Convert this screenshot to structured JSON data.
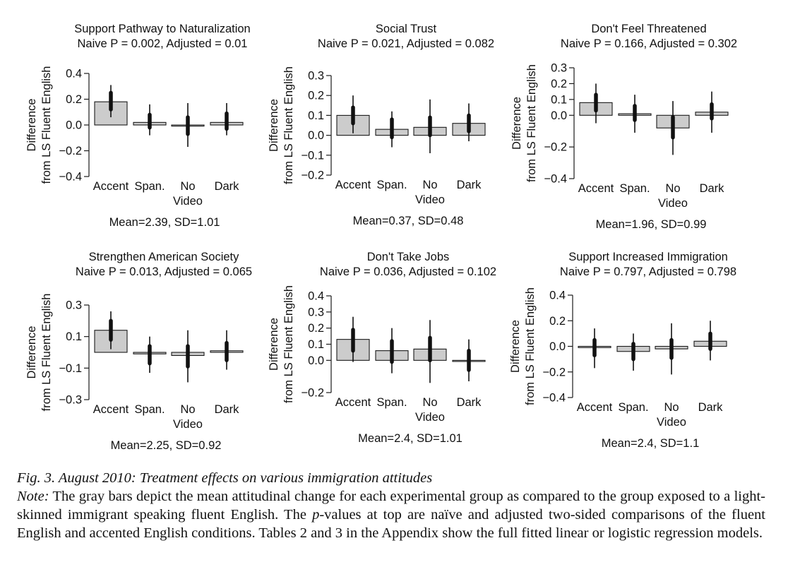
{
  "chart_data": [
    {
      "type": "bar",
      "title": "Support Pathway to Naturalization",
      "subtitle": "Naive P = 0.002, Adjusted = 0.01",
      "ylabel": [
        "Difference",
        "from LS Fluent English"
      ],
      "categories": [
        "Accent",
        "Span.",
        "No\nVideo",
        "Dark"
      ],
      "values": [
        0.18,
        0.02,
        0.0,
        0.02
      ],
      "ci_thick": [
        [
          0.12,
          0.25
        ],
        [
          -0.02,
          0.08
        ],
        [
          -0.07,
          0.06
        ],
        [
          -0.03,
          0.09
        ]
      ],
      "ci_thin": [
        [
          0.06,
          0.31
        ],
        [
          -0.08,
          0.16
        ],
        [
          -0.17,
          0.17
        ],
        [
          -0.08,
          0.17
        ]
      ],
      "ylim": [
        -0.4,
        0.4
      ],
      "yticks": [
        -0.4,
        -0.2,
        0.0,
        0.2,
        0.4
      ],
      "ytick_labels": [
        "−0.4",
        "−0.2",
        "0.0",
        "0.2",
        "0.4"
      ],
      "footer": "Mean=2.39, SD=1.01"
    },
    {
      "type": "bar",
      "title": "Social Trust",
      "subtitle": "Naive P = 0.021, Adjusted = 0.082",
      "ylabel": [
        "Difference",
        "from LS Fluent English"
      ],
      "categories": [
        "Accent",
        "Span.",
        "No\nVideo",
        "Dark"
      ],
      "values": [
        0.1,
        0.03,
        0.04,
        0.06
      ],
      "ci_thick": [
        [
          0.06,
          0.14
        ],
        [
          -0.01,
          0.08
        ],
        [
          0.0,
          0.09
        ],
        [
          0.02,
          0.1
        ]
      ],
      "ci_thin": [
        [
          0.01,
          0.2
        ],
        [
          -0.06,
          0.12
        ],
        [
          -0.09,
          0.18
        ],
        [
          -0.03,
          0.16
        ]
      ],
      "ylim": [
        -0.2,
        0.3
      ],
      "yticks": [
        -0.2,
        -0.1,
        0.0,
        0.1,
        0.2,
        0.3
      ],
      "ytick_labels": [
        "−0.2",
        "−0.1",
        "0.0",
        "0.1",
        "0.2",
        "0.3"
      ],
      "footer": "Mean=0.37, SD=0.48"
    },
    {
      "type": "bar",
      "title": "Don't Feel Threatened",
      "subtitle": "Naive P = 0.166, Adjusted = 0.302",
      "ylabel": [
        "Difference",
        "from LS Fluent English"
      ],
      "categories": [
        "Accent",
        "Span.",
        "No\nVideo",
        "Dark"
      ],
      "values": [
        0.08,
        0.01,
        -0.08,
        0.02
      ],
      "ci_thick": [
        [
          0.03,
          0.13
        ],
        [
          -0.03,
          0.06
        ],
        [
          -0.14,
          -0.01
        ],
        [
          -0.02,
          0.07
        ]
      ],
      "ci_thin": [
        [
          -0.05,
          0.2
        ],
        [
          -0.11,
          0.13
        ],
        [
          -0.25,
          0.09
        ],
        [
          -0.11,
          0.15
        ]
      ],
      "ylim": [
        -0.4,
        0.3
      ],
      "yticks": [
        -0.4,
        -0.2,
        0.0,
        0.1,
        0.2,
        0.3
      ],
      "ytick_labels": [
        "−0.4",
        "−0.2",
        "0.0",
        "0.1",
        "0.2",
        "0.3"
      ],
      "footer": "Mean=1.96, SD=0.99"
    },
    {
      "type": "bar",
      "title": "Strengthen American Society",
      "subtitle": "Naive P = 0.013, Adjusted = 0.065",
      "ylabel": [
        "Difference",
        "from LS Fluent English"
      ],
      "categories": [
        "Accent",
        "Span.",
        "No\nVideo",
        "Dark"
      ],
      "values": [
        0.14,
        -0.01,
        -0.02,
        0.01
      ],
      "ci_thick": [
        [
          0.08,
          0.2
        ],
        [
          -0.07,
          0.04
        ],
        [
          -0.09,
          0.04
        ],
        [
          -0.05,
          0.06
        ]
      ],
      "ci_thin": [
        [
          0.02,
          0.26
        ],
        [
          -0.13,
          0.1
        ],
        [
          -0.19,
          0.14
        ],
        [
          -0.11,
          0.14
        ]
      ],
      "ylim": [
        -0.3,
        0.3
      ],
      "yticks": [
        -0.3,
        -0.1,
        0.1,
        0.3
      ],
      "ytick_labels": [
        "−0.3",
        "−0.1",
        "0.1",
        "0.3"
      ],
      "footer": "Mean=2.25, SD=0.92"
    },
    {
      "type": "bar",
      "title": "Don't Take Jobs",
      "subtitle": "Naive P = 0.036, Adjusted = 0.102",
      "ylabel": [
        "Difference",
        "from LS Fluent English"
      ],
      "categories": [
        "Accent",
        "Span.",
        "No\nVideo",
        "Dark"
      ],
      "values": [
        0.13,
        0.06,
        0.07,
        0.0
      ],
      "ci_thick": [
        [
          0.06,
          0.19
        ],
        [
          -0.01,
          0.12
        ],
        [
          0.0,
          0.14
        ],
        [
          -0.06,
          0.06
        ]
      ],
      "ci_thin": [
        [
          -0.01,
          0.27
        ],
        [
          -0.08,
          0.2
        ],
        [
          -0.14,
          0.25
        ],
        [
          -0.13,
          0.13
        ]
      ],
      "ylim": [
        -0.2,
        0.4
      ],
      "yticks": [
        -0.2,
        0.0,
        0.1,
        0.2,
        0.3,
        0.4
      ],
      "ytick_labels": [
        "−0.2",
        "0.0",
        "0.1",
        "0.2",
        "0.3",
        "0.4"
      ],
      "footer": "Mean=2.4, SD=1.01"
    },
    {
      "type": "bar",
      "title": "Support Increased Immigration",
      "subtitle": "Naive P = 0.797, Adjusted = 0.798",
      "ylabel": [
        "Difference",
        "from LS Fluent English"
      ],
      "categories": [
        "Accent",
        "Span.",
        "No\nVideo",
        "Dark"
      ],
      "values": [
        -0.01,
        -0.04,
        -0.02,
        0.04
      ],
      "ci_thick": [
        [
          -0.07,
          0.05
        ],
        [
          -0.1,
          0.02
        ],
        [
          -0.09,
          0.05
        ],
        [
          -0.02,
          0.1
        ]
      ],
      "ci_thin": [
        [
          -0.17,
          0.14
        ],
        [
          -0.19,
          0.1
        ],
        [
          -0.22,
          0.18
        ],
        [
          -0.11,
          0.2
        ]
      ],
      "ylim": [
        -0.4,
        0.4
      ],
      "yticks": [
        -0.4,
        -0.2,
        0.0,
        0.2,
        0.4
      ],
      "ytick_labels": [
        "−0.4",
        "−0.2",
        "0.0",
        "0.2",
        "0.4"
      ],
      "footer": "Mean=2.4, SD=1.1"
    }
  ],
  "colors": {
    "bar_fill": "#cccccc",
    "bar_stroke": "#1a1a1a",
    "axis": "#1a1a1a"
  },
  "caption": {
    "title": "Fig. 3.  August 2010: Treatment effects on various immigration attitudes",
    "note_label": "Note:",
    "note_part1": " The gray bars depict the mean attitudinal change for each experimental group as compared to the group exposed to a light-skinned immigrant speaking fluent English. The ",
    "note_p": "p",
    "note_part2": "-values at top are naïve and adjusted two-sided comparisons of the fluent English and accented English conditions. Tables 2 and 3 in the Appendix show the full fitted linear or logistic regression models."
  }
}
